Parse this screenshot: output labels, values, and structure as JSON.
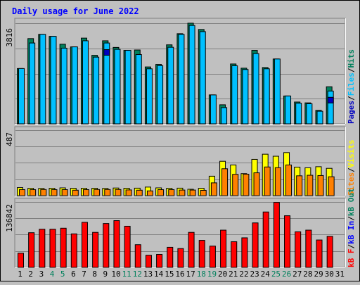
{
  "title": "Daily usage for June 2022",
  "colors": {
    "title": "#0000ff",
    "hits": "#00805c",
    "files": "#00c0ff",
    "pages": "#0000c0",
    "visits": "#ffff00",
    "sites": "#ff8000",
    "kbin": "#0000ff",
    "kbout": "#00805c",
    "kbf": "#ff0000",
    "weekend": "#00805c",
    "weekday": "#000000"
  },
  "chart_data": [
    {
      "type": "bar",
      "panel": "top",
      "ymax_label": "3816",
      "ymax": 3816,
      "legend": [
        {
          "text": "Pages",
          "color": "#0000c0"
        },
        {
          "text": "Files",
          "color": "#00c0ff"
        },
        {
          "text": "Hits",
          "color": "#00805c"
        }
      ],
      "legend_sep": "/",
      "x": [
        "1",
        "2",
        "3",
        "4",
        "5",
        "6",
        "7",
        "8",
        "9",
        "10",
        "11",
        "12",
        "13",
        "14",
        "15",
        "16",
        "17",
        "18",
        "19",
        "20",
        "21",
        "22",
        "23",
        "24",
        "25",
        "26",
        "27",
        "28",
        "29",
        "30",
        "31"
      ],
      "series": [
        {
          "name": "Hits",
          "values": [
            2055,
            3167,
            3324,
            3250,
            2958,
            2859,
            3185,
            2545,
            3086,
            2839,
            2729,
            2743,
            2114,
            2206,
            2935,
            3349,
            3739,
            3506,
            1075,
            708,
            2224,
            2068,
            2730,
            2092,
            2409,
            1036,
            811,
            780,
            501,
            1378,
            0
          ]
        },
        {
          "name": "Files",
          "values": [
            2055,
            3003,
            3324,
            3250,
            2812,
            2859,
            3086,
            2478,
            3003,
            2767,
            2729,
            2574,
            2045,
            2163,
            2845,
            3324,
            3655,
            3426,
            1075,
            604,
            2158,
            2019,
            2610,
            2045,
            2409,
            1036,
            768,
            747,
            468,
            1219,
            0
          ]
        },
        {
          "name": "Pages",
          "values": [
            0,
            0,
            0,
            0,
            0,
            0,
            0,
            0,
            2758,
            0,
            0,
            0,
            0,
            0,
            0,
            0,
            0,
            0,
            0,
            0,
            0,
            0,
            0,
            0,
            0,
            0,
            0,
            0,
            0,
            986,
            0
          ]
        }
      ]
    },
    {
      "type": "bar",
      "panel": "middle",
      "ymax_label": "487",
      "ymax": 487,
      "legend": [
        {
          "text": "Sites",
          "color": "#ff8000"
        },
        {
          "text": "Visits",
          "color": "#ffff00"
        }
      ],
      "legend_sep": "/",
      "x": [
        "1",
        "2",
        "3",
        "4",
        "5",
        "6",
        "7",
        "8",
        "9",
        "10",
        "11",
        "12",
        "13",
        "14",
        "15",
        "16",
        "17",
        "18",
        "19",
        "20",
        "21",
        "22",
        "23",
        "24",
        "25",
        "26",
        "27",
        "28",
        "29",
        "30",
        "31"
      ],
      "series": [
        {
          "name": "Visits",
          "values": [
            59,
            54,
            53,
            54,
            57,
            54,
            54,
            54,
            53,
            56,
            54,
            55,
            63,
            57,
            54,
            55,
            47,
            54,
            143,
            253,
            226,
            162,
            267,
            305,
            290,
            317,
            210,
            205,
            213,
            201,
            0
          ]
        },
        {
          "name": "Sites",
          "values": [
            44,
            44,
            45,
            44,
            44,
            40,
            44,
            45,
            45,
            45,
            42,
            40,
            35,
            44,
            44,
            41,
            41,
            39,
            94,
            198,
            157,
            158,
            168,
            211,
            206,
            226,
            146,
            150,
            148,
            139,
            0
          ]
        }
      ]
    },
    {
      "type": "bar",
      "panel": "bottom",
      "ymax_label": "136842",
      "ymax": 136842,
      "legend": [
        {
          "text": "kB F",
          "color": "#ff0000"
        },
        {
          "text": "kB In",
          "color": "#0000ff"
        },
        {
          "text": "kB Out",
          "color": "#00805c"
        }
      ],
      "legend_sep": "/",
      "x": [
        "1",
        "2",
        "3",
        "4",
        "5",
        "6",
        "7",
        "8",
        "9",
        "10",
        "11",
        "12",
        "13",
        "14",
        "15",
        "16",
        "17",
        "18",
        "19",
        "20",
        "21",
        "22",
        "23",
        "24",
        "25",
        "26",
        "27",
        "28",
        "29",
        "30",
        "31"
      ],
      "series": [
        {
          "name": "kB F",
          "values": [
            29400,
            71800,
            79000,
            79000,
            81100,
            69400,
            93300,
            72500,
            90800,
            96800,
            85200,
            47000,
            25200,
            26900,
            41600,
            39000,
            72500,
            55900,
            44100,
            77100,
            53200,
            61200,
            92100,
            114700,
            134500,
            106900,
            73700,
            77100,
            56700,
            64300,
            0
          ]
        }
      ]
    }
  ],
  "x_labels": [
    {
      "text": "1",
      "weekend": false
    },
    {
      "text": "2",
      "weekend": false
    },
    {
      "text": "3",
      "weekend": false
    },
    {
      "text": "4",
      "weekend": true
    },
    {
      "text": "5",
      "weekend": true
    },
    {
      "text": "6",
      "weekend": false
    },
    {
      "text": "7",
      "weekend": false
    },
    {
      "text": "8",
      "weekend": false
    },
    {
      "text": "9",
      "weekend": false
    },
    {
      "text": "10",
      "weekend": false
    },
    {
      "text": "11",
      "weekend": true
    },
    {
      "text": "12",
      "weekend": true
    },
    {
      "text": "13",
      "weekend": false
    },
    {
      "text": "14",
      "weekend": false
    },
    {
      "text": "15",
      "weekend": false
    },
    {
      "text": "16",
      "weekend": false
    },
    {
      "text": "17",
      "weekend": false
    },
    {
      "text": "18",
      "weekend": true
    },
    {
      "text": "19",
      "weekend": true
    },
    {
      "text": "20",
      "weekend": false
    },
    {
      "text": "21",
      "weekend": false
    },
    {
      "text": "22",
      "weekend": false
    },
    {
      "text": "23",
      "weekend": false
    },
    {
      "text": "24",
      "weekend": false
    },
    {
      "text": "25",
      "weekend": true
    },
    {
      "text": "26",
      "weekend": true
    },
    {
      "text": "27",
      "weekend": false
    },
    {
      "text": "28",
      "weekend": false
    },
    {
      "text": "29",
      "weekend": false
    },
    {
      "text": "30",
      "weekend": false
    },
    {
      "text": "31",
      "weekend": false
    }
  ]
}
